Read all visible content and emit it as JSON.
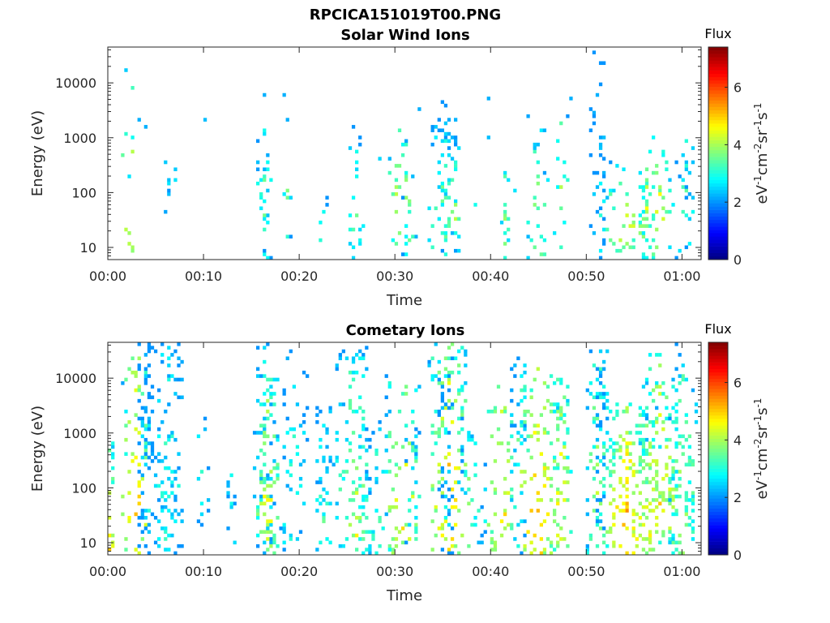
{
  "figure_title": "RPCICA151019T00.PNG",
  "chart_data": [
    {
      "type": "heatmap",
      "title": "Solar Wind Ions",
      "xlabel": "Time",
      "ylabel": "Energy (eV)",
      "x_unit": "minutes",
      "xlim": [
        0,
        62
      ],
      "x_ticks": [
        0,
        10,
        20,
        30,
        40,
        50,
        60
      ],
      "x_tick_labels": [
        "00:00",
        "00:10",
        "00:20",
        "00:30",
        "00:40",
        "00:50",
        "01:00"
      ],
      "y_scale": "log",
      "ylim": [
        6,
        45000
      ],
      "y_ticks": [
        10,
        100,
        1000,
        10000
      ],
      "y_tick_labels": [
        "10",
        "100",
        "1000",
        "10000"
      ],
      "colorbar": {
        "label": "Flux",
        "units": "eV-1cm-2sr-1s-1",
        "min": 0,
        "max": 7.4,
        "ticks": [
          0,
          2,
          4,
          6
        ],
        "tick_labels": [
          "0",
          "2",
          "4",
          "6"
        ],
        "colormap": "jet"
      },
      "clusters": [
        [
          2.2,
          35,
          8,
          0.7,
          3.5,
          4.6
        ],
        [
          6.4,
          30,
          2,
          0.4,
          1.1,
          3.0
        ],
        [
          16.3,
          80,
          8,
          0.8,
          1.9,
          3.3
        ],
        [
          16.6,
          35,
          4,
          0.5,
          1.3,
          3.2
        ],
        [
          18.8,
          50,
          2,
          0.3,
          1.1,
          3.5
        ],
        [
          22.6,
          14,
          2,
          0.3,
          1.2,
          3.1
        ],
        [
          25.9,
          30,
          8,
          0.6,
          2.3,
          3.2
        ],
        [
          30.5,
          50,
          10,
          1.2,
          2.0,
          4.3
        ],
        [
          31.5,
          30,
          3,
          0.6,
          1.3,
          3.3
        ],
        [
          34.9,
          25,
          18,
          1.5,
          2.6,
          3.4
        ],
        [
          35.6,
          100,
          10,
          0.9,
          2.2,
          3.3
        ],
        [
          36.1,
          40,
          5,
          0.6,
          1.3,
          4.2
        ],
        [
          41.4,
          30,
          6,
          0.5,
          1.6,
          3.6
        ],
        [
          44.9,
          40,
          12,
          1.0,
          2.6,
          3.6
        ],
        [
          47.3,
          50,
          6,
          0.6,
          2.2,
          3.8
        ],
        [
          51.2,
          200,
          10,
          0.6,
          3.2,
          2.2
        ],
        [
          51.4,
          50,
          5,
          0.5,
          1.8,
          3.2
        ],
        [
          54.2,
          25,
          20,
          2.0,
          1.6,
          4.3
        ],
        [
          56.4,
          50,
          5,
          0.5,
          1.5,
          4.0
        ],
        [
          57.6,
          30,
          12,
          1.1,
          2.1,
          4.5
        ],
        [
          60.3,
          55,
          8,
          1.2,
          1.7,
          3.3
        ],
        [
          60.8,
          40,
          3,
          0.3,
          1.3,
          3.0
        ]
      ],
      "isolated": [
        [
          1.5,
          490,
          2.5
        ],
        [
          2.2,
          210,
          2.6
        ],
        [
          3.4,
          2000,
          2.2
        ],
        [
          3.8,
          1600,
          2.2
        ],
        [
          6.1,
          350,
          2.4
        ],
        [
          6.5,
          150,
          2.6
        ],
        [
          7.1,
          270,
          2.4
        ],
        [
          6.9,
          170,
          2.6
        ],
        [
          10.0,
          2000,
          2.3
        ],
        [
          16.2,
          6200,
          2.2
        ],
        [
          16.4,
          210,
          2.4
        ],
        [
          18.4,
          6100,
          2.2
        ],
        [
          18.8,
          2200,
          2.2
        ],
        [
          26.0,
          270,
          2.5
        ],
        [
          28.4,
          420,
          2.5
        ],
        [
          32.4,
          3300,
          2.2
        ],
        [
          39.7,
          5400,
          2.2
        ],
        [
          39.9,
          1050,
          2.3
        ],
        [
          42.0,
          180,
          2.6
        ],
        [
          42.6,
          110,
          2.6
        ],
        [
          45.1,
          800,
          2.3
        ],
        [
          48.4,
          5400,
          2.2
        ],
        [
          51.2,
          6100,
          2.2
        ],
        [
          55.6,
          240,
          2.6
        ],
        [
          58.9,
          60,
          2.7
        ],
        [
          38.5,
          60,
          2.9
        ]
      ]
    },
    {
      "type": "heatmap",
      "title": "Cometary Ions",
      "xlabel": "Time",
      "ylabel": "Energy (eV)",
      "x_unit": "minutes",
      "xlim": [
        0,
        62
      ],
      "x_ticks": [
        0,
        10,
        20,
        30,
        40,
        50,
        60
      ],
      "x_tick_labels": [
        "00:00",
        "00:10",
        "00:20",
        "00:30",
        "00:40",
        "00:50",
        "01:00"
      ],
      "y_scale": "log",
      "ylim": [
        6,
        45000
      ],
      "y_ticks": [
        10,
        100,
        1000,
        10000
      ],
      "y_tick_labels": [
        "10",
        "100",
        "1000",
        "10000"
      ],
      "colorbar": {
        "label": "Flux",
        "units": "eV-1cm-2sr-1s-1",
        "min": 0,
        "max": 7.4,
        "ticks": [
          0,
          2,
          4,
          6
        ],
        "tick_labels": [
          "0",
          "2",
          "4",
          "6"
        ],
        "colormap": "jet"
      },
      "clusters": [
        [
          0.3,
          12,
          10,
          0.4,
          2.5,
          5.0
        ],
        [
          2.8,
          25,
          30,
          1.5,
          4.0,
          5.0
        ],
        [
          3.8,
          300,
          30,
          0.8,
          3.0,
          2.4
        ],
        [
          6.4,
          150,
          40,
          1.4,
          4.5,
          3.0
        ],
        [
          6.0,
          50,
          15,
          1.0,
          2.0,
          3.2
        ],
        [
          9.7,
          250,
          4,
          0.6,
          1.4,
          2.8
        ],
        [
          12.9,
          12,
          6,
          0.4,
          1.8,
          3.2
        ],
        [
          16.3,
          180,
          30,
          1.2,
          4.2,
          2.8
        ],
        [
          16.7,
          40,
          40,
          1.0,
          3.2,
          4.5
        ],
        [
          19.6,
          60,
          20,
          1.5,
          3.5,
          3.0
        ],
        [
          22.6,
          15,
          20,
          1.2,
          3.0,
          3.2
        ],
        [
          25.6,
          60,
          45,
          1.7,
          3.7,
          3.8
        ],
        [
          26.1,
          20,
          6,
          0.5,
          1.4,
          4.5
        ],
        [
          28.2,
          25,
          15,
          1.0,
          2.5,
          3.2
        ],
        [
          30.8,
          50,
          30,
          1.8,
          3.0,
          4.6
        ],
        [
          32.0,
          40,
          10,
          0.8,
          2.0,
          3.4
        ],
        [
          35.5,
          45,
          60,
          2.0,
          4.0,
          4.9
        ],
        [
          35.4,
          300,
          15,
          0.8,
          2.5,
          2.7
        ],
        [
          38.0,
          40,
          15,
          1.5,
          2.2,
          3.2
        ],
        [
          41.3,
          40,
          25,
          1.5,
          3.0,
          4.8
        ],
        [
          42.8,
          250,
          10,
          1.2,
          2.5,
          2.6
        ],
        [
          45.0,
          40,
          45,
          2.0,
          3.5,
          5.0
        ],
        [
          47.5,
          50,
          30,
          1.0,
          3.0,
          4.5
        ],
        [
          51.2,
          100,
          45,
          1.2,
          4.5,
          3.8
        ],
        [
          51.4,
          500,
          10,
          0.4,
          2.0,
          2.3
        ],
        [
          54.3,
          25,
          60,
          2.2,
          2.8,
          5.1
        ],
        [
          56.6,
          40,
          25,
          1.0,
          3.0,
          4.4
        ],
        [
          57.8,
          60,
          55,
          1.8,
          3.5,
          4.6
        ],
        [
          60.2,
          80,
          40,
          1.5,
          3.6,
          3.8
        ]
      ],
      "isolated": [
        [
          4.4,
          690,
          2.3
        ],
        [
          6.5,
          820,
          2.3
        ],
        [
          16.1,
          480,
          2.2
        ],
        [
          21.8,
          300,
          2.5
        ],
        [
          23.9,
          350,
          2.5
        ],
        [
          29.1,
          450,
          2.4
        ],
        [
          32.2,
          560,
          2.3
        ],
        [
          35.6,
          530,
          2.3
        ],
        [
          38.4,
          620,
          2.4
        ],
        [
          42.6,
          460,
          2.3
        ],
        [
          51.0,
          720,
          2.3
        ]
      ]
    }
  ]
}
